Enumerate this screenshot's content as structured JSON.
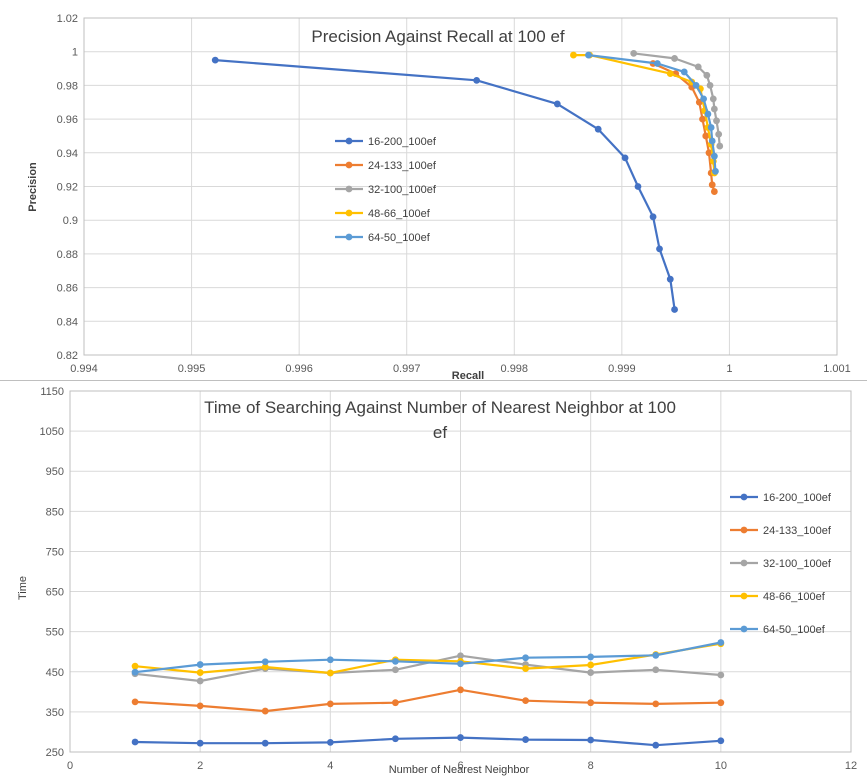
{
  "chart_data": [
    {
      "type": "line",
      "title": "Precision Against Recall at 100 ef",
      "xlabel": "Recall",
      "ylabel": "Precision",
      "xlim": [
        0.994,
        1.001
      ],
      "ylim": [
        0.82,
        1.02
      ],
      "xticks": [
        0.994,
        0.995,
        0.996,
        0.997,
        0.998,
        0.999,
        1,
        1.001
      ],
      "xtick_labels": [
        "0.994",
        "0.995",
        "0.996",
        "0.997",
        "0.998",
        "0.999",
        "1",
        "1.001"
      ],
      "yticks": [
        0.82,
        0.84,
        0.86,
        0.88,
        0.9,
        0.92,
        0.94,
        0.96,
        0.98,
        1,
        1.02
      ],
      "ytick_labels": [
        "0.82",
        "0.84",
        "0.86",
        "0.88",
        "0.9",
        "0.92",
        "0.94",
        "0.96",
        "0.98",
        "1",
        "1.02"
      ],
      "grid": true,
      "legend": "center",
      "series": [
        {
          "name": "16-200_100ef",
          "color": "#4472C4",
          "x": [
            0.99522,
            0.99765,
            0.9984,
            0.99878,
            0.99903,
            0.99915,
            0.99929,
            0.99935,
            0.99945,
            0.99949
          ],
          "y": [
            0.995,
            0.983,
            0.969,
            0.954,
            0.937,
            0.92,
            0.902,
            0.883,
            0.865,
            0.847
          ]
        },
        {
          "name": "24-133_100ef",
          "color": "#ED7D31",
          "x": [
            0.99929,
            0.9995,
            0.99965,
            0.99972,
            0.99975,
            0.99978,
            0.99981,
            0.99983,
            0.99984,
            0.99986
          ],
          "y": [
            0.993,
            0.987,
            0.979,
            0.97,
            0.96,
            0.95,
            0.94,
            0.928,
            0.921,
            0.917
          ]
        },
        {
          "name": "32-100_100ef",
          "color": "#A5A5A5",
          "x": [
            0.99911,
            0.99949,
            0.99971,
            0.99979,
            0.99982,
            0.99985,
            0.99986,
            0.99988,
            0.9999,
            0.99991
          ],
          "y": [
            0.999,
            0.996,
            0.991,
            0.986,
            0.98,
            0.972,
            0.966,
            0.959,
            0.951,
            0.944
          ]
        },
        {
          "name": "48-66_100ef",
          "color": "#FFC000",
          "x": [
            0.99855,
            0.9987,
            0.99945,
            0.99965,
            0.99973,
            0.99977,
            0.9998,
            0.99983,
            0.99985,
            0.99986
          ],
          "y": [
            0.998,
            0.998,
            0.987,
            0.982,
            0.978,
            0.965,
            0.955,
            0.945,
            0.935,
            0.928
          ]
        },
        {
          "name": "64-50_100ef",
          "color": "#5B9BD5",
          "x": [
            0.99869,
            0.99933,
            0.99958,
            0.99969,
            0.99976,
            0.9998,
            0.99983,
            0.99984,
            0.99986,
            0.99987
          ],
          "y": [
            0.998,
            0.993,
            0.988,
            0.98,
            0.972,
            0.963,
            0.955,
            0.947,
            0.938,
            0.929
          ]
        }
      ]
    },
    {
      "type": "line",
      "title": "Time of Searching Against Number of Nearest Neighbor at 100 ef",
      "xlabel": "Number of Nearest Neighbor",
      "ylabel": "Time",
      "xlim": [
        0,
        12
      ],
      "ylim": [
        250,
        1150
      ],
      "xticks": [
        0,
        2,
        4,
        6,
        8,
        10,
        12
      ],
      "xtick_labels": [
        "0",
        "2",
        "4",
        "6",
        "8",
        "10",
        "12"
      ],
      "yticks": [
        250,
        350,
        450,
        550,
        650,
        750,
        850,
        950,
        1050,
        1150
      ],
      "ytick_labels": [
        "250",
        "350",
        "450",
        "550",
        "650",
        "750",
        "850",
        "950",
        "1050",
        "1150"
      ],
      "grid": true,
      "legend": "right",
      "x": [
        1,
        2,
        3,
        4,
        5,
        6,
        7,
        8,
        9,
        10
      ],
      "series": [
        {
          "name": "16-200_100ef",
          "color": "#4472C4",
          "values": [
            275,
            272,
            272,
            274,
            283,
            286,
            281,
            280,
            267,
            278
          ]
        },
        {
          "name": "24-133_100ef",
          "color": "#ED7D31",
          "values": [
            375,
            365,
            352,
            370,
            373,
            405,
            378,
            373,
            370,
            373
          ]
        },
        {
          "name": "32-100_100ef",
          "color": "#A5A5A5",
          "values": [
            445,
            427,
            458,
            447,
            455,
            490,
            468,
            448,
            455,
            442
          ]
        },
        {
          "name": "48-66_100ef",
          "color": "#FFC000",
          "values": [
            464,
            448,
            462,
            447,
            480,
            476,
            458,
            467,
            493,
            520
          ]
        },
        {
          "name": "64-50_100ef",
          "color": "#5B9BD5",
          "values": [
            449,
            468,
            475,
            480,
            476,
            470,
            485,
            487,
            491,
            523
          ]
        }
      ]
    }
  ]
}
